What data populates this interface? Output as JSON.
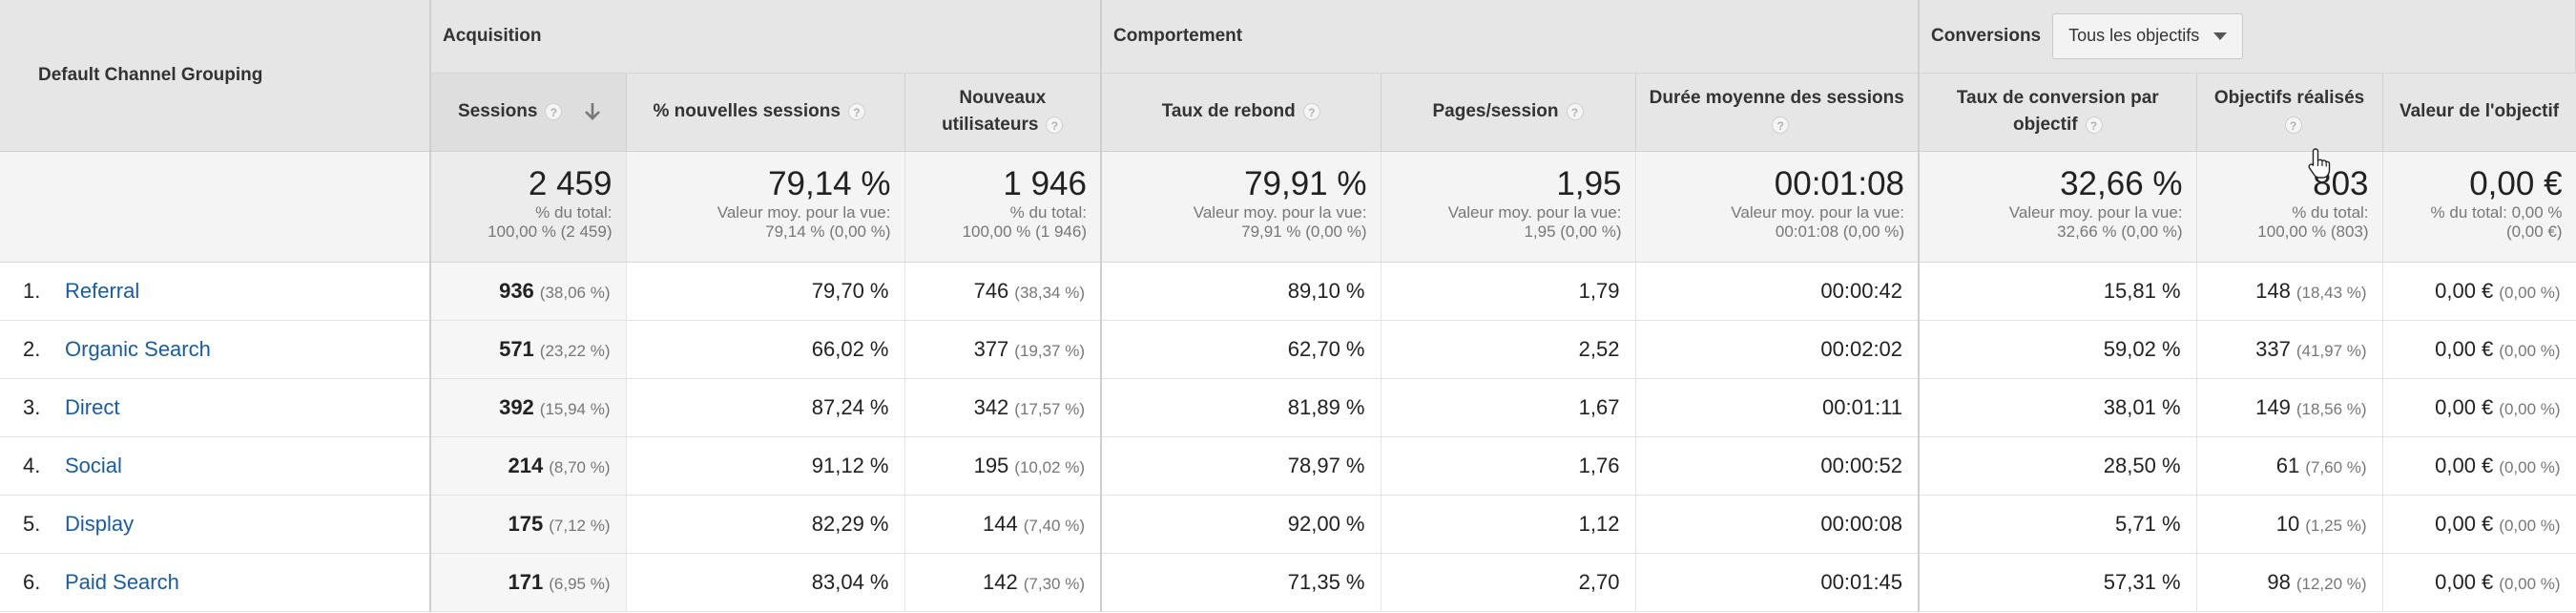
{
  "dimension_header": "Default Channel Grouping",
  "groups": {
    "acquisition": "Acquisition",
    "behavior": "Comportement",
    "conversions": "Conversions"
  },
  "goal_selector": {
    "value": "Tous les objectifs"
  },
  "metric_headers": {
    "sessions": "Sessions",
    "new_sessions_pct": "% nouvelles sessions",
    "new_users": "Nouveaux utilisateurs",
    "bounce_rate": "Taux de rebond",
    "pages_session": "Pages/session",
    "avg_duration": "Durée moyenne des sessions",
    "conv_rate": "Taux de conversion par objectif",
    "goals_completed": "Objectifs réalisés",
    "goal_value": "Valeur de l'objectif"
  },
  "help_icon_glyph": "?",
  "icons": {
    "help": "question-circle-icon",
    "sort": "arrow-down-icon",
    "dropdown": "caret-down-icon",
    "cursor": "hand-pointer-icon"
  },
  "totals": {
    "sessions": {
      "value": "2 459",
      "l1": "% du total:",
      "l2": "100,00 % (2 459)"
    },
    "new_sessions_pct": {
      "value": "79,14 %",
      "l1": "Valeur moy. pour la vue:",
      "l2": "79,14 % (0,00 %)"
    },
    "new_users": {
      "value": "1 946",
      "l1": "% du total:",
      "l2": "100,00 % (1 946)"
    },
    "bounce_rate": {
      "value": "79,91 %",
      "l1": "Valeur moy. pour la vue:",
      "l2": "79,91 % (0,00 %)"
    },
    "pages_session": {
      "value": "1,95",
      "l1": "Valeur moy. pour la vue:",
      "l2": "1,95 (0,00 %)"
    },
    "avg_duration": {
      "value": "00:01:08",
      "l1": "Valeur moy. pour la vue:",
      "l2": "00:01:08 (0,00 %)"
    },
    "conv_rate": {
      "value": "32,66 %",
      "l1": "Valeur moy. pour la vue:",
      "l2": "32,66 % (0,00 %)"
    },
    "goals_completed": {
      "value": "803",
      "l1": "% du total:",
      "l2": "100,00 % (803)"
    },
    "goal_value": {
      "value": "0,00 €",
      "l1": "% du total: 0,00 %",
      "l2": "(0,00 €)"
    }
  },
  "rows": [
    {
      "index": "1.",
      "channel": "Referral",
      "sessions": "936",
      "sessions_pct": "(38,06 %)",
      "new_sessions_pct": "79,70 %",
      "new_users": "746",
      "new_users_pct": "(38,34 %)",
      "bounce_rate": "89,10 %",
      "pages_session": "1,79",
      "avg_duration": "00:00:42",
      "conv_rate": "15,81 %",
      "goals_completed": "148",
      "goals_pct": "(18,43 %)",
      "goal_value": "0,00 €",
      "goal_value_pct": "(0,00 %)"
    },
    {
      "index": "2.",
      "channel": "Organic Search",
      "sessions": "571",
      "sessions_pct": "(23,22 %)",
      "new_sessions_pct": "66,02 %",
      "new_users": "377",
      "new_users_pct": "(19,37 %)",
      "bounce_rate": "62,70 %",
      "pages_session": "2,52",
      "avg_duration": "00:02:02",
      "conv_rate": "59,02 %",
      "goals_completed": "337",
      "goals_pct": "(41,97 %)",
      "goal_value": "0,00 €",
      "goal_value_pct": "(0,00 %)"
    },
    {
      "index": "3.",
      "channel": "Direct",
      "sessions": "392",
      "sessions_pct": "(15,94 %)",
      "new_sessions_pct": "87,24 %",
      "new_users": "342",
      "new_users_pct": "(17,57 %)",
      "bounce_rate": "81,89 %",
      "pages_session": "1,67",
      "avg_duration": "00:01:11",
      "conv_rate": "38,01 %",
      "goals_completed": "149",
      "goals_pct": "(18,56 %)",
      "goal_value": "0,00 €",
      "goal_value_pct": "(0,00 %)"
    },
    {
      "index": "4.",
      "channel": "Social",
      "sessions": "214",
      "sessions_pct": "(8,70 %)",
      "new_sessions_pct": "91,12 %",
      "new_users": "195",
      "new_users_pct": "(10,02 %)",
      "bounce_rate": "78,97 %",
      "pages_session": "1,76",
      "avg_duration": "00:00:52",
      "conv_rate": "28,50 %",
      "goals_completed": "61",
      "goals_pct": "(7,60 %)",
      "goal_value": "0,00 €",
      "goal_value_pct": "(0,00 %)"
    },
    {
      "index": "5.",
      "channel": "Display",
      "sessions": "175",
      "sessions_pct": "(7,12 %)",
      "new_sessions_pct": "82,29 %",
      "new_users": "144",
      "new_users_pct": "(7,40 %)",
      "bounce_rate": "92,00 %",
      "pages_session": "1,12",
      "avg_duration": "00:00:08",
      "conv_rate": "5,71 %",
      "goals_completed": "10",
      "goals_pct": "(1,25 %)",
      "goal_value": "0,00 €",
      "goal_value_pct": "(0,00 %)"
    },
    {
      "index": "6.",
      "channel": "Paid Search",
      "sessions": "171",
      "sessions_pct": "(6,95 %)",
      "new_sessions_pct": "83,04 %",
      "new_users": "142",
      "new_users_pct": "(7,30 %)",
      "bounce_rate": "71,35 %",
      "pages_session": "2,70",
      "avg_duration": "00:01:45",
      "conv_rate": "57,31 %",
      "goals_completed": "98",
      "goals_pct": "(12,20 %)",
      "goal_value": "0,00 €",
      "goal_value_pct": "(0,00 %)"
    }
  ]
}
